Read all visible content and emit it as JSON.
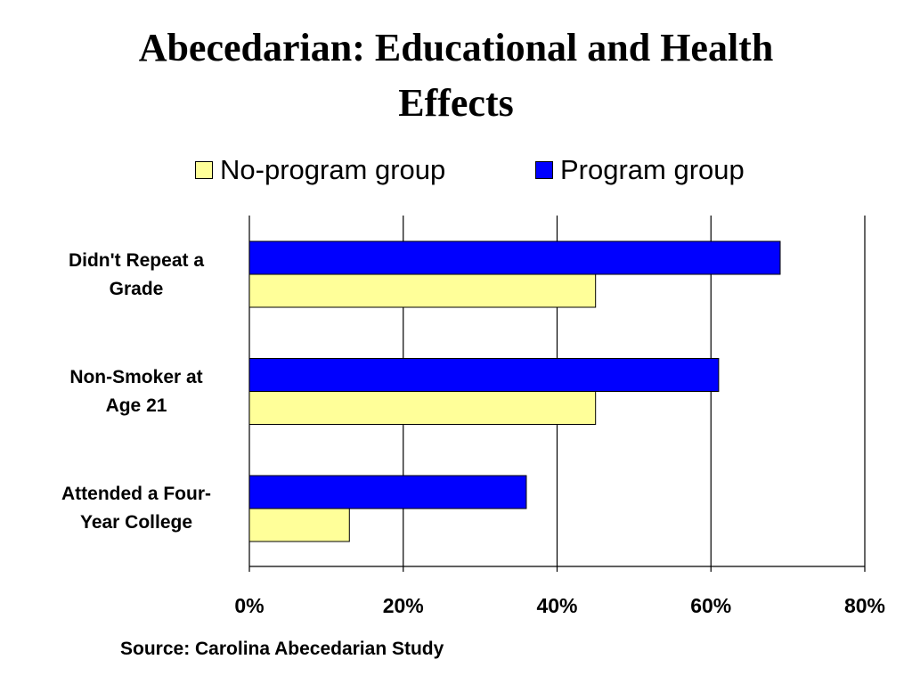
{
  "title_line1": "Abecedarian: Educational and Health",
  "title_line2": "Effects",
  "source": "Source: Carolina Abecedarian Study",
  "colors": {
    "no_program": "#ffff99",
    "program": "#0000ff",
    "gridline": "#000000"
  },
  "chart_data": {
    "type": "bar",
    "orientation": "horizontal",
    "title": "Abecedarian: Educational and Health Effects",
    "categories": [
      {
        "line1": "Didn't Repeat a",
        "line2": "Grade"
      },
      {
        "line1": "Non-Smoker at",
        "line2": "Age 21"
      },
      {
        "line1": "Attended a Four-",
        "line2": "Year College"
      }
    ],
    "series": [
      {
        "name": "Program group",
        "values": [
          69,
          61,
          36
        ]
      },
      {
        "name": "No-program group",
        "values": [
          45,
          45,
          13
        ]
      }
    ],
    "legend": [
      {
        "name": "No-program group"
      },
      {
        "name": "Program group"
      }
    ],
    "xlim": [
      0,
      80
    ],
    "x_ticks": [
      "0%",
      "20%",
      "40%",
      "60%",
      "80%"
    ],
    "x_tick_values": [
      0,
      20,
      40,
      60,
      80
    ],
    "grid": true,
    "legend_placement": "top"
  }
}
